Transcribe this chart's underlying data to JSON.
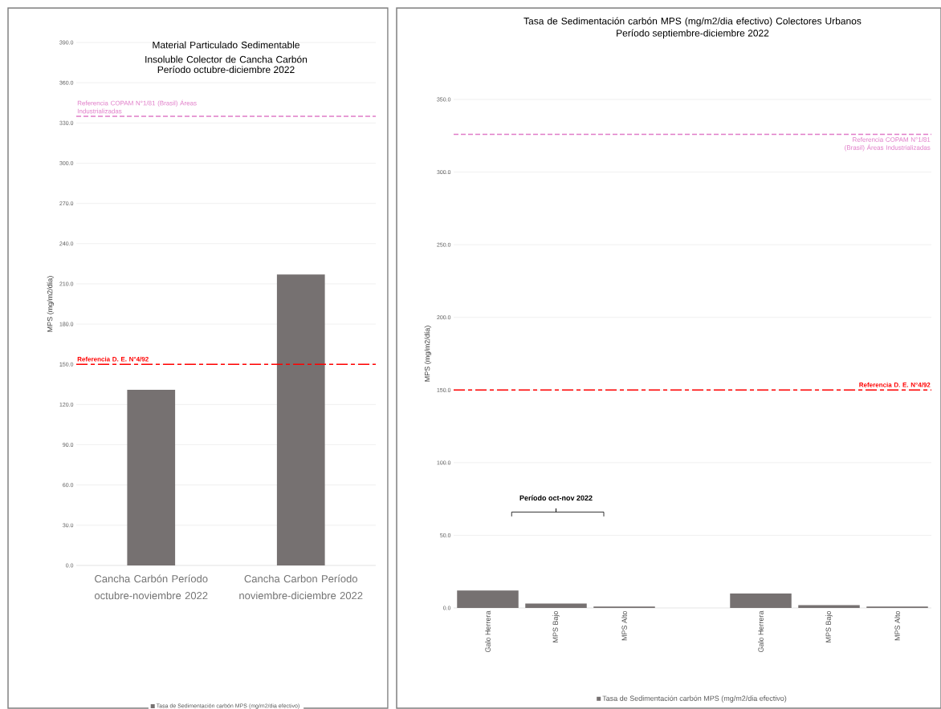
{
  "chart_data": [
    {
      "type": "bar",
      "title": "Material Particulado Sedimentable Insoluble Colector de Cancha Carbón",
      "subtitle": "Período octubre-diciembre 2022",
      "ylabel": "MPS (mg/m2/día)",
      "categories": [
        "Cancha Carbón Período octubre-noviembre 2022",
        "Cancha Carbon Período noviembre-diciembre 2022"
      ],
      "series": [
        {
          "name": "Tasa de Sedimentación carbón MPS (mg/m2/dia efectivo)",
          "color": "#767171",
          "values": [
            131,
            217
          ]
        }
      ],
      "ylim": [
        0,
        390
      ],
      "yticks": [
        {
          "value": 0,
          "label": "0.0"
        },
        {
          "value": 30,
          "label": "30.0"
        },
        {
          "value": 60,
          "label": "60.0"
        },
        {
          "value": 90,
          "label": "90.0"
        },
        {
          "value": 120,
          "label": "120.0"
        },
        {
          "value": 150,
          "label": "150.0"
        },
        {
          "value": 180,
          "label": "180.0"
        },
        {
          "value": 210,
          "label": "210.0"
        },
        {
          "value": 240,
          "label": "240.0"
        },
        {
          "value": 270,
          "label": "270.0"
        },
        {
          "value": 300,
          "label": "300.0"
        },
        {
          "value": 330,
          "label": "330.0"
        },
        {
          "value": 360,
          "label": "360.0"
        },
        {
          "value": 390,
          "label": "390.0"
        }
      ],
      "ref_lines": [
        {
          "axis": "y",
          "value": 335,
          "label": "Referencia COPAM N°1/81 (Brasil) Áreas Industrializadas",
          "color": "#e07cc8",
          "line_style": "dashed"
        },
        {
          "axis": "y",
          "value": 150,
          "label": "Referencia D. E. N°4/92",
          "color": "#ff0000",
          "line_style": "dashdot"
        }
      ],
      "grid": "y",
      "legend": "bottom"
    },
    {
      "type": "bar",
      "title": "Tasa de Sedimentación carbón MPS (mg/m2/dia efectivo) Colectores Urbanos",
      "subtitle": "Período septiembre-diciembre 2022",
      "ylabel": "MPS (mg/m2/día)",
      "categories": [
        "Galo Herrera",
        "MPS Bajo",
        "MPS Alto",
        null,
        "Galo Herrera",
        "MPS Bajo",
        "MPS Alto"
      ],
      "series": [
        {
          "name": "Tasa de Sedimentación carbón MPS (mg/m2/dia efectivo)",
          "color": "#767171",
          "values": [
            12,
            3,
            1,
            null,
            10,
            2,
            1
          ]
        }
      ],
      "ylim": [
        0,
        350
      ],
      "yticks": [
        {
          "value": 0,
          "label": "0.0"
        },
        {
          "value": 50,
          "label": "50.0"
        },
        {
          "value": 100,
          "label": "100.0"
        },
        {
          "value": 150,
          "label": "150.0"
        },
        {
          "value": 200,
          "label": "200.0"
        },
        {
          "value": 250,
          "label": "250.0"
        },
        {
          "value": 300,
          "label": "300.0"
        },
        {
          "value": 350,
          "label": "350.0"
        }
      ],
      "ref_lines": [
        {
          "axis": "y",
          "value": 326,
          "label": "Referencia COPAM N°1/81 (Brasil) Áreas Industrializadas",
          "color": "#e07cc8",
          "line_style": "dashed"
        },
        {
          "axis": "y",
          "value": 150,
          "label": "Referencia D. E. N°4/92",
          "color": "#ff0000",
          "line_style": "dashdot"
        }
      ],
      "annotations": [
        "Período oct-nov 2022"
      ],
      "grid": "y",
      "legend": "bottom"
    }
  ]
}
